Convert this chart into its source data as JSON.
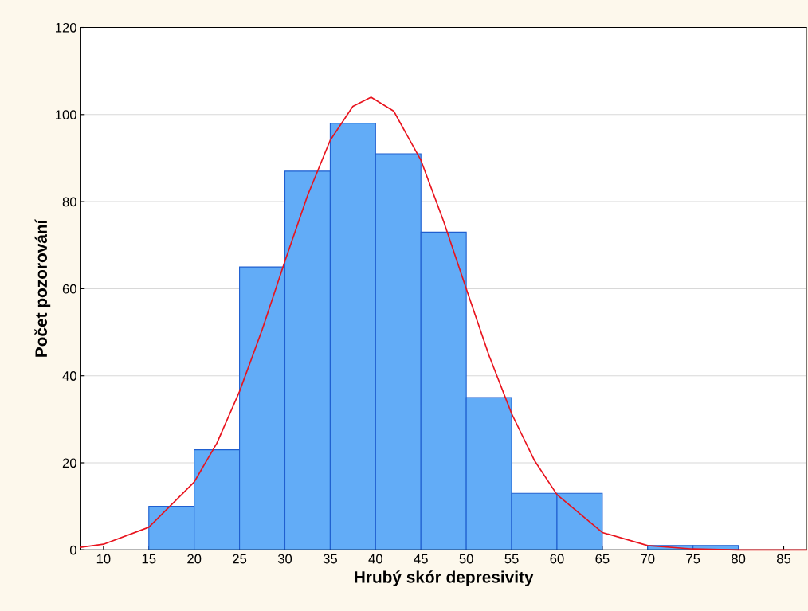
{
  "chart_data": {
    "type": "histogram",
    "xlabel": "Hrubý skór depresivity",
    "ylabel": "Počet pozorování",
    "bins": [
      15,
      20,
      25,
      30,
      35,
      40,
      45,
      50,
      55,
      60,
      65,
      70,
      75,
      80
    ],
    "values": [
      10,
      23,
      65,
      87,
      98,
      91,
      73,
      35,
      13,
      13,
      0,
      1,
      1
    ],
    "color": "#62acf7",
    "series": [
      {
        "type": "line",
        "color": "#e8141e",
        "x": [
          7.5,
          10,
          15,
          20,
          22.5,
          25,
          27.5,
          30,
          32.5,
          35,
          37.5,
          39.5,
          42,
          45,
          47.5,
          50,
          52.5,
          55,
          57.5,
          60,
          65,
          70,
          75,
          80,
          87.5
        ],
        "values": [
          0.6,
          1.3,
          5.2,
          15.6,
          24.5,
          36.4,
          50.6,
          66.3,
          81.4,
          94.1,
          101.9,
          104,
          100.8,
          89.5,
          75.5,
          60,
          44.7,
          31.3,
          20.6,
          12.7,
          4.0,
          1.0,
          0.2,
          0,
          0
        ]
      }
    ],
    "xlim": [
      7.5,
      87.5
    ],
    "xticks": [
      10,
      15,
      20,
      25,
      30,
      35,
      40,
      45,
      50,
      55,
      60,
      65,
      70,
      75,
      80,
      85
    ],
    "ylim": [
      0,
      120
    ],
    "yticks": [
      0,
      20,
      40,
      60,
      80,
      100,
      120
    ],
    "grid": "y",
    "marker": "none",
    "line_style": "solid"
  }
}
